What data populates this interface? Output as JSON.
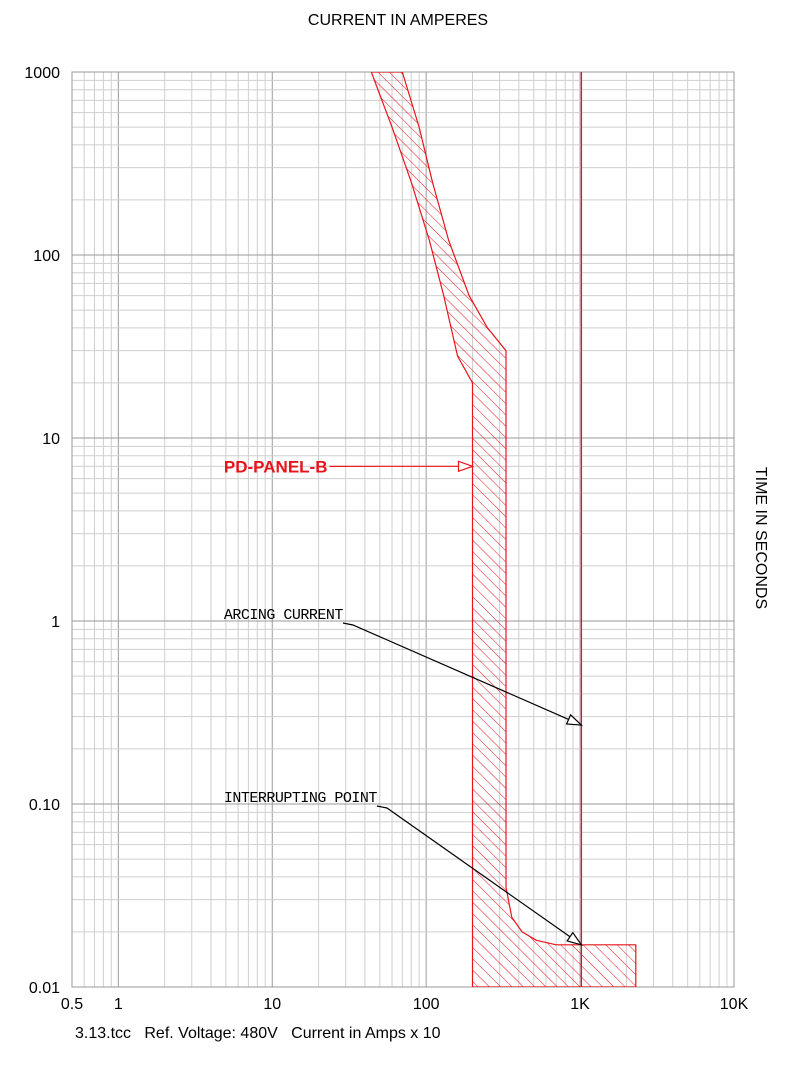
{
  "chart_data": {
    "type": "line",
    "title": "CURRENT IN AMPERES",
    "xlabel": "CURRENT IN AMPERES",
    "ylabel": "TIME IN SECONDS",
    "x_scale": "log",
    "y_scale": "log",
    "xlim": [
      0.5,
      10000
    ],
    "ylim": [
      0.01,
      1000
    ],
    "x_ticks": [
      {
        "value": 0.5,
        "label": "0.5"
      },
      {
        "value": 1,
        "label": "1"
      },
      {
        "value": 10,
        "label": "10"
      },
      {
        "value": 100,
        "label": "100"
      },
      {
        "value": 1000,
        "label": "1K"
      },
      {
        "value": 10000,
        "label": "10K"
      }
    ],
    "y_ticks": [
      {
        "value": 0.01,
        "label": "0.01"
      },
      {
        "value": 0.1,
        "label": "0.10"
      },
      {
        "value": 1,
        "label": "1"
      },
      {
        "value": 10,
        "label": "10"
      },
      {
        "value": 100,
        "label": "100"
      },
      {
        "value": 1000,
        "label": "1000"
      }
    ],
    "grid": true,
    "series": [
      {
        "name": "PD-PANEL-B",
        "color": "#e8141a",
        "band": "hatched",
        "min_curve": [
          [
            44,
            1000
          ],
          [
            60,
            500
          ],
          [
            80,
            250
          ],
          [
            105,
            120
          ],
          [
            130,
            60
          ],
          [
            160,
            28
          ],
          [
            200,
            20
          ],
          [
            200,
            0.01
          ]
        ],
        "max_curve": [
          [
            70,
            1000
          ],
          [
            90,
            500
          ],
          [
            110,
            250
          ],
          [
            140,
            120
          ],
          [
            190,
            60
          ],
          [
            250,
            40
          ],
          [
            330,
            30
          ],
          [
            330,
            0.035
          ],
          [
            360,
            0.024
          ],
          [
            420,
            0.02
          ],
          [
            520,
            0.018
          ],
          [
            700,
            0.017
          ],
          [
            2300,
            0.017
          ],
          [
            2300,
            0.01
          ]
        ]
      },
      {
        "name": "ARCING CURRENT",
        "color": "#e8141a",
        "x": [
          1020,
          1020
        ],
        "y": [
          0.01,
          1000
        ]
      }
    ],
    "annotations": [
      {
        "text": "PD-PANEL-B",
        "x": 5,
        "y": 7,
        "arrow_to": [
          200,
          7
        ],
        "color": "#e8141a"
      },
      {
        "text": "ARCING CURRENT",
        "x": 5,
        "y": 1,
        "arrow_to": [
          1020,
          0.27
        ],
        "color": "#000000"
      },
      {
        "text": "INTERRUPTING POINT",
        "x": 5,
        "y": 0.1,
        "arrow_to": [
          1020,
          0.017
        ],
        "color": "#000000"
      }
    ]
  },
  "footer": {
    "text": "3.13.tcc   Ref. Voltage: 480V   Current in Amps x 10"
  }
}
